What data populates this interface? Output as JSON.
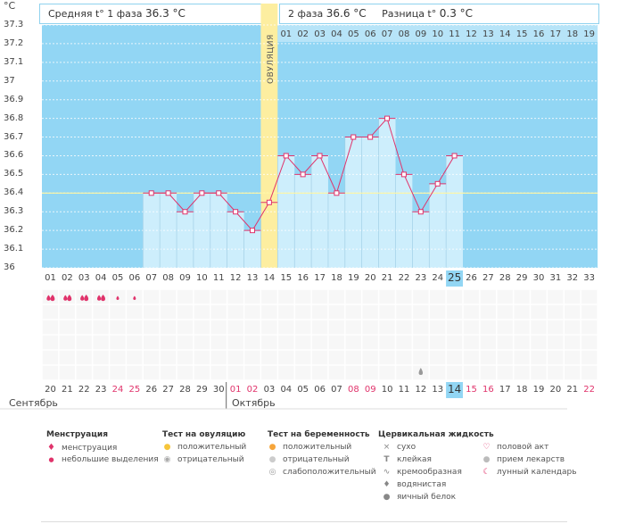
{
  "header": {
    "unit": "°C",
    "phase1_label": "Средняя t° 1 фаза",
    "phase1_value": "36.3 °C",
    "phase2_label": "2 фаза",
    "phase2_value": "36.6 °C",
    "diff_label": "Разница t°",
    "diff_value": "0.3 °C"
  },
  "ovulation_label": "ОВУЛЯЦИЯ",
  "post_ovulation_days": [
    "01",
    "02",
    "03",
    "04",
    "05",
    "06",
    "07",
    "08",
    "09",
    "10",
    "11",
    "12",
    "13",
    "14",
    "15",
    "16",
    "17",
    "18",
    "19"
  ],
  "cycle_days": [
    "01",
    "02",
    "03",
    "04",
    "05",
    "06",
    "07",
    "08",
    "09",
    "10",
    "11",
    "12",
    "13",
    "14",
    "15",
    "16",
    "17",
    "18",
    "19",
    "20",
    "21",
    "22",
    "23",
    "24",
    "25",
    "26",
    "27",
    "28",
    "29",
    "30",
    "31",
    "32",
    "33"
  ],
  "today_cycle_day": "25",
  "calendar": {
    "dates": [
      {
        "d": "20",
        "red": false
      },
      {
        "d": "21",
        "red": false
      },
      {
        "d": "22",
        "red": false
      },
      {
        "d": "23",
        "red": false
      },
      {
        "d": "24",
        "red": true
      },
      {
        "d": "25",
        "red": true
      },
      {
        "d": "26",
        "red": false
      },
      {
        "d": "27",
        "red": false
      },
      {
        "d": "28",
        "red": false
      },
      {
        "d": "29",
        "red": false
      },
      {
        "d": "30",
        "red": false
      },
      {
        "d": "01",
        "red": true
      },
      {
        "d": "02",
        "red": true
      },
      {
        "d": "03",
        "red": false
      },
      {
        "d": "04",
        "red": false
      },
      {
        "d": "05",
        "red": false
      },
      {
        "d": "06",
        "red": false
      },
      {
        "d": "07",
        "red": false
      },
      {
        "d": "08",
        "red": true
      },
      {
        "d": "09",
        "red": true
      },
      {
        "d": "10",
        "red": false
      },
      {
        "d": "11",
        "red": false
      },
      {
        "d": "12",
        "red": false
      },
      {
        "d": "13",
        "red": false
      },
      {
        "d": "14",
        "red": false
      },
      {
        "d": "15",
        "red": true
      },
      {
        "d": "16",
        "red": true
      },
      {
        "d": "17",
        "red": false
      },
      {
        "d": "18",
        "red": false
      },
      {
        "d": "19",
        "red": false
      },
      {
        "d": "20",
        "red": false
      },
      {
        "d": "21",
        "red": false
      },
      {
        "d": "22",
        "red": true
      }
    ],
    "month1": "Сентябрь",
    "month2": "Октябрь"
  },
  "chart_data": {
    "type": "line",
    "ylabel": "°C",
    "ylim": [
      36.0,
      37.3
    ],
    "yticks": [
      "36",
      "36.1",
      "36.2",
      "36.3",
      "36.4",
      "36.5",
      "36.6",
      "36.7",
      "36.8",
      "36.9",
      "37",
      "37.1",
      "37.2",
      "37.3"
    ],
    "coverline": 36.4,
    "ovulation_day": 14,
    "series": [
      {
        "x": [
          7,
          8,
          9,
          10,
          11,
          12,
          13,
          14,
          15,
          16,
          17,
          18,
          19,
          20,
          21,
          22,
          23,
          24,
          25
        ],
        "values": [
          36.4,
          36.4,
          36.3,
          36.4,
          36.4,
          36.3,
          36.2,
          36.35,
          36.6,
          36.5,
          36.6,
          36.4,
          36.7,
          36.7,
          36.8,
          36.5,
          36.3,
          36.45,
          36.6
        ]
      }
    ]
  },
  "legend": {
    "menstruation": {
      "title": "Менструация",
      "items": [
        "менструация",
        "небольшие выделения"
      ]
    },
    "ovulation_test": {
      "title": "Тест на овуляцию",
      "items": [
        "положительный",
        "отрицательный"
      ]
    },
    "pregnancy_test": {
      "title": "Тест на беременность",
      "items": [
        "положительный",
        "отрицательный",
        "слабоположительный"
      ]
    },
    "cervical": {
      "title": "Цервикальная жидкость",
      "items": [
        "сухо",
        "клейкая",
        "кремообразная",
        "водянистая",
        "яичный белок"
      ]
    },
    "other": {
      "items": [
        "половой акт",
        "прием лекарств",
        "лунный календарь"
      ]
    }
  },
  "colors": {
    "sky": "#92d6f4",
    "bar": "#cdeefc",
    "ovulation": "#fdeea0",
    "line": "#e0336b",
    "red_text": "#e0336b"
  }
}
